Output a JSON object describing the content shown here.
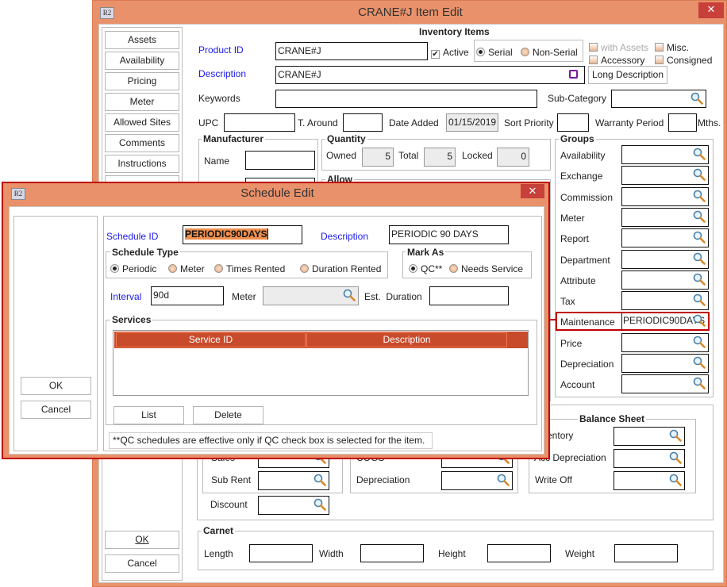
{
  "main": {
    "title": "CRANE#J Item Edit",
    "sidebar": [
      "Assets",
      "Availability",
      "Pricing",
      "Meter",
      "Allowed Sites",
      "Comments",
      "Instructions"
    ],
    "ok": "OK",
    "cancel": "Cancel",
    "section_title": "Inventory Items",
    "product_id_label": "Product ID",
    "product_id": "CRANE#J",
    "active_label": "Active",
    "active_checked": true,
    "serial": "Serial",
    "non_serial": "Non-Serial",
    "serial_selected": "Serial",
    "with_assets": "with Assets",
    "misc": "Misc.",
    "accessory": "Accessory",
    "consigned": "Consigned",
    "description_label": "Description",
    "description": "CRANE#J",
    "long_description": "Long Description",
    "keywords_label": "Keywords",
    "keywords": "",
    "sub_category_label": "Sub-Category",
    "upc_label": "UPC",
    "t_around_label": "T. Around",
    "date_added_label": "Date Added",
    "date_added": "01/15/2019",
    "sort_priority_label": "Sort Priority",
    "warranty_label": "Warranty Period",
    "mths": "Mths.",
    "manufacturer": {
      "title": "Manufacturer",
      "name_label": "Name"
    },
    "quantity": {
      "title": "Quantity",
      "owned_label": "Owned",
      "owned": "5",
      "total_label": "Total",
      "total": "5",
      "locked_label": "Locked",
      "locked": "0"
    },
    "allow_title": "Allow",
    "groups": {
      "title": "Groups",
      "rows": [
        {
          "label": "Availability",
          "value": ""
        },
        {
          "label": "Exchange",
          "value": ""
        },
        {
          "label": "Commission",
          "value": ""
        },
        {
          "label": "Meter",
          "value": ""
        },
        {
          "label": "Report",
          "value": ""
        },
        {
          "label": "Department",
          "value": ""
        },
        {
          "label": "Attribute",
          "value": ""
        },
        {
          "label": "Tax",
          "value": ""
        },
        {
          "label": "Maintenance",
          "value": "PERIODIC90DAYS"
        },
        {
          "label": "Price",
          "value": ""
        },
        {
          "label": "Depreciation",
          "value": ""
        },
        {
          "label": "Account",
          "value": ""
        }
      ]
    },
    "accounts": {
      "sales": "Sales",
      "sub_rent": "Sub Rent",
      "discount": "Discount",
      "cogs": "COGS",
      "depreciation": "Depreciation",
      "balance_sheet": "Balance Sheet",
      "inventory": "Inventory",
      "acc_depreciation": "Acc Depreciation",
      "write_off": "Write Off"
    },
    "carnet": {
      "title": "Carnet",
      "length": "Length",
      "width": "Width",
      "height": "Height",
      "weight": "Weight"
    }
  },
  "dialog": {
    "title": "Schedule Edit",
    "ok": "OK",
    "cancel": "Cancel",
    "schedule_id_label": "Schedule ID",
    "schedule_id": "PERIODIC90DAYS",
    "description_label": "Description",
    "description": "PERIODIC 90 DAYS",
    "schedule_type": {
      "title": "Schedule Type",
      "options": [
        "Periodic",
        "Meter",
        "Times Rented",
        "Duration Rented"
      ],
      "selected": "Periodic"
    },
    "mark_as": {
      "title": "Mark As",
      "options": [
        "QC**",
        "Needs Service"
      ],
      "selected": "QC**"
    },
    "interval_label": "Interval",
    "interval": "90d",
    "meter_label": "Meter",
    "est_duration_label": "Est.  Duration",
    "services": {
      "title": "Services",
      "columns": [
        "Service ID",
        "Description"
      ],
      "rows": []
    },
    "list": "List",
    "delete": "Delete",
    "note": "**QC schedules are effective only if QC check box is selected for the item."
  },
  "colors": {
    "titlebar": "#e9916a",
    "accent_red": "#c00000",
    "table_header": "#c84b2c",
    "label_blue": "#1a1aee"
  }
}
